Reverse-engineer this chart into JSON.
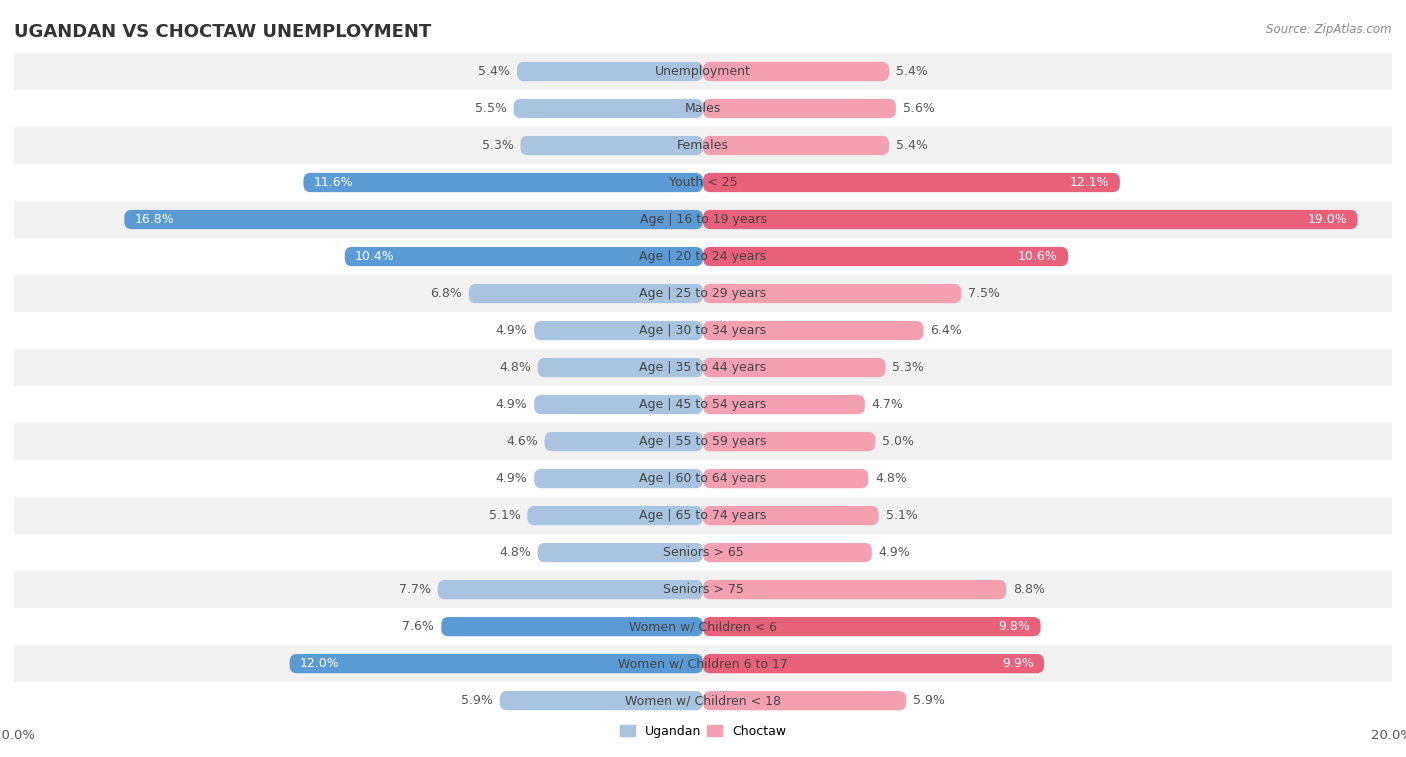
{
  "title": "UGANDAN VS CHOCTAW UNEMPLOYMENT",
  "source": "Source: ZipAtlas.com",
  "categories": [
    "Unemployment",
    "Males",
    "Females",
    "Youth < 25",
    "Age | 16 to 19 years",
    "Age | 20 to 24 years",
    "Age | 25 to 29 years",
    "Age | 30 to 34 years",
    "Age | 35 to 44 years",
    "Age | 45 to 54 years",
    "Age | 55 to 59 years",
    "Age | 60 to 64 years",
    "Age | 65 to 74 years",
    "Seniors > 65",
    "Seniors > 75",
    "Women w/ Children < 6",
    "Women w/ Children 6 to 17",
    "Women w/ Children < 18"
  ],
  "ugandan": [
    5.4,
    5.5,
    5.3,
    11.6,
    16.8,
    10.4,
    6.8,
    4.9,
    4.8,
    4.9,
    4.6,
    4.9,
    5.1,
    4.8,
    7.7,
    7.6,
    12.0,
    5.9
  ],
  "choctaw": [
    5.4,
    5.6,
    5.4,
    12.1,
    19.0,
    10.6,
    7.5,
    6.4,
    5.3,
    4.7,
    5.0,
    4.8,
    5.1,
    4.9,
    8.8,
    9.8,
    9.9,
    5.9
  ],
  "ugandan_color_normal": "#a8c4e0",
  "choctaw_color_normal": "#f4a0b0",
  "ugandan_color_highlight": "#5b9bd5",
  "choctaw_color_highlight": "#e8607a",
  "bg_stripe_a": "#f2f2f2",
  "bg_stripe_b": "#ffffff",
  "axis_max": 20.0,
  "title_fontsize": 13,
  "bar_label_fontsize": 9,
  "cat_label_fontsize": 9,
  "source_fontsize": 8.5,
  "legend_fontsize": 9,
  "bar_height": 0.52,
  "highlight_threshold": 9.0,
  "legend_label_ugandan": "Ugandan",
  "legend_label_choctaw": "Choctaw"
}
